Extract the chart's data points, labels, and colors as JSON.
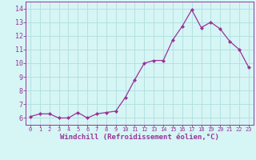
{
  "x": [
    0,
    1,
    2,
    3,
    4,
    5,
    6,
    7,
    8,
    9,
    10,
    11,
    12,
    13,
    14,
    15,
    16,
    17,
    18,
    19,
    20,
    21,
    22,
    23
  ],
  "y": [
    6.1,
    6.3,
    6.3,
    6.0,
    6.0,
    6.4,
    6.0,
    6.3,
    6.4,
    6.5,
    7.5,
    8.8,
    10.0,
    10.2,
    10.2,
    11.7,
    12.7,
    13.9,
    12.6,
    13.0,
    12.5,
    11.6,
    11.0,
    9.7
  ],
  "line_color": "#993399",
  "marker": "D",
  "marker_size": 2.0,
  "line_width": 0.9,
  "xlabel": "Windchill (Refroidissement éolien,°C)",
  "xlabel_fontsize": 6.5,
  "xlabel_color": "#993399",
  "bg_color": "#d6f5f5",
  "grid_color": "#b0dede",
  "tick_color": "#993399",
  "ylim": [
    5.5,
    14.5
  ],
  "xlim": [
    -0.5,
    23.5
  ],
  "yticks": [
    6,
    7,
    8,
    9,
    10,
    11,
    12,
    13,
    14
  ],
  "xticks": [
    0,
    1,
    2,
    3,
    4,
    5,
    6,
    7,
    8,
    9,
    10,
    11,
    12,
    13,
    14,
    15,
    16,
    17,
    18,
    19,
    20,
    21,
    22,
    23
  ],
  "tick_fontsize_x": 5.0,
  "tick_fontsize_y": 6.0
}
